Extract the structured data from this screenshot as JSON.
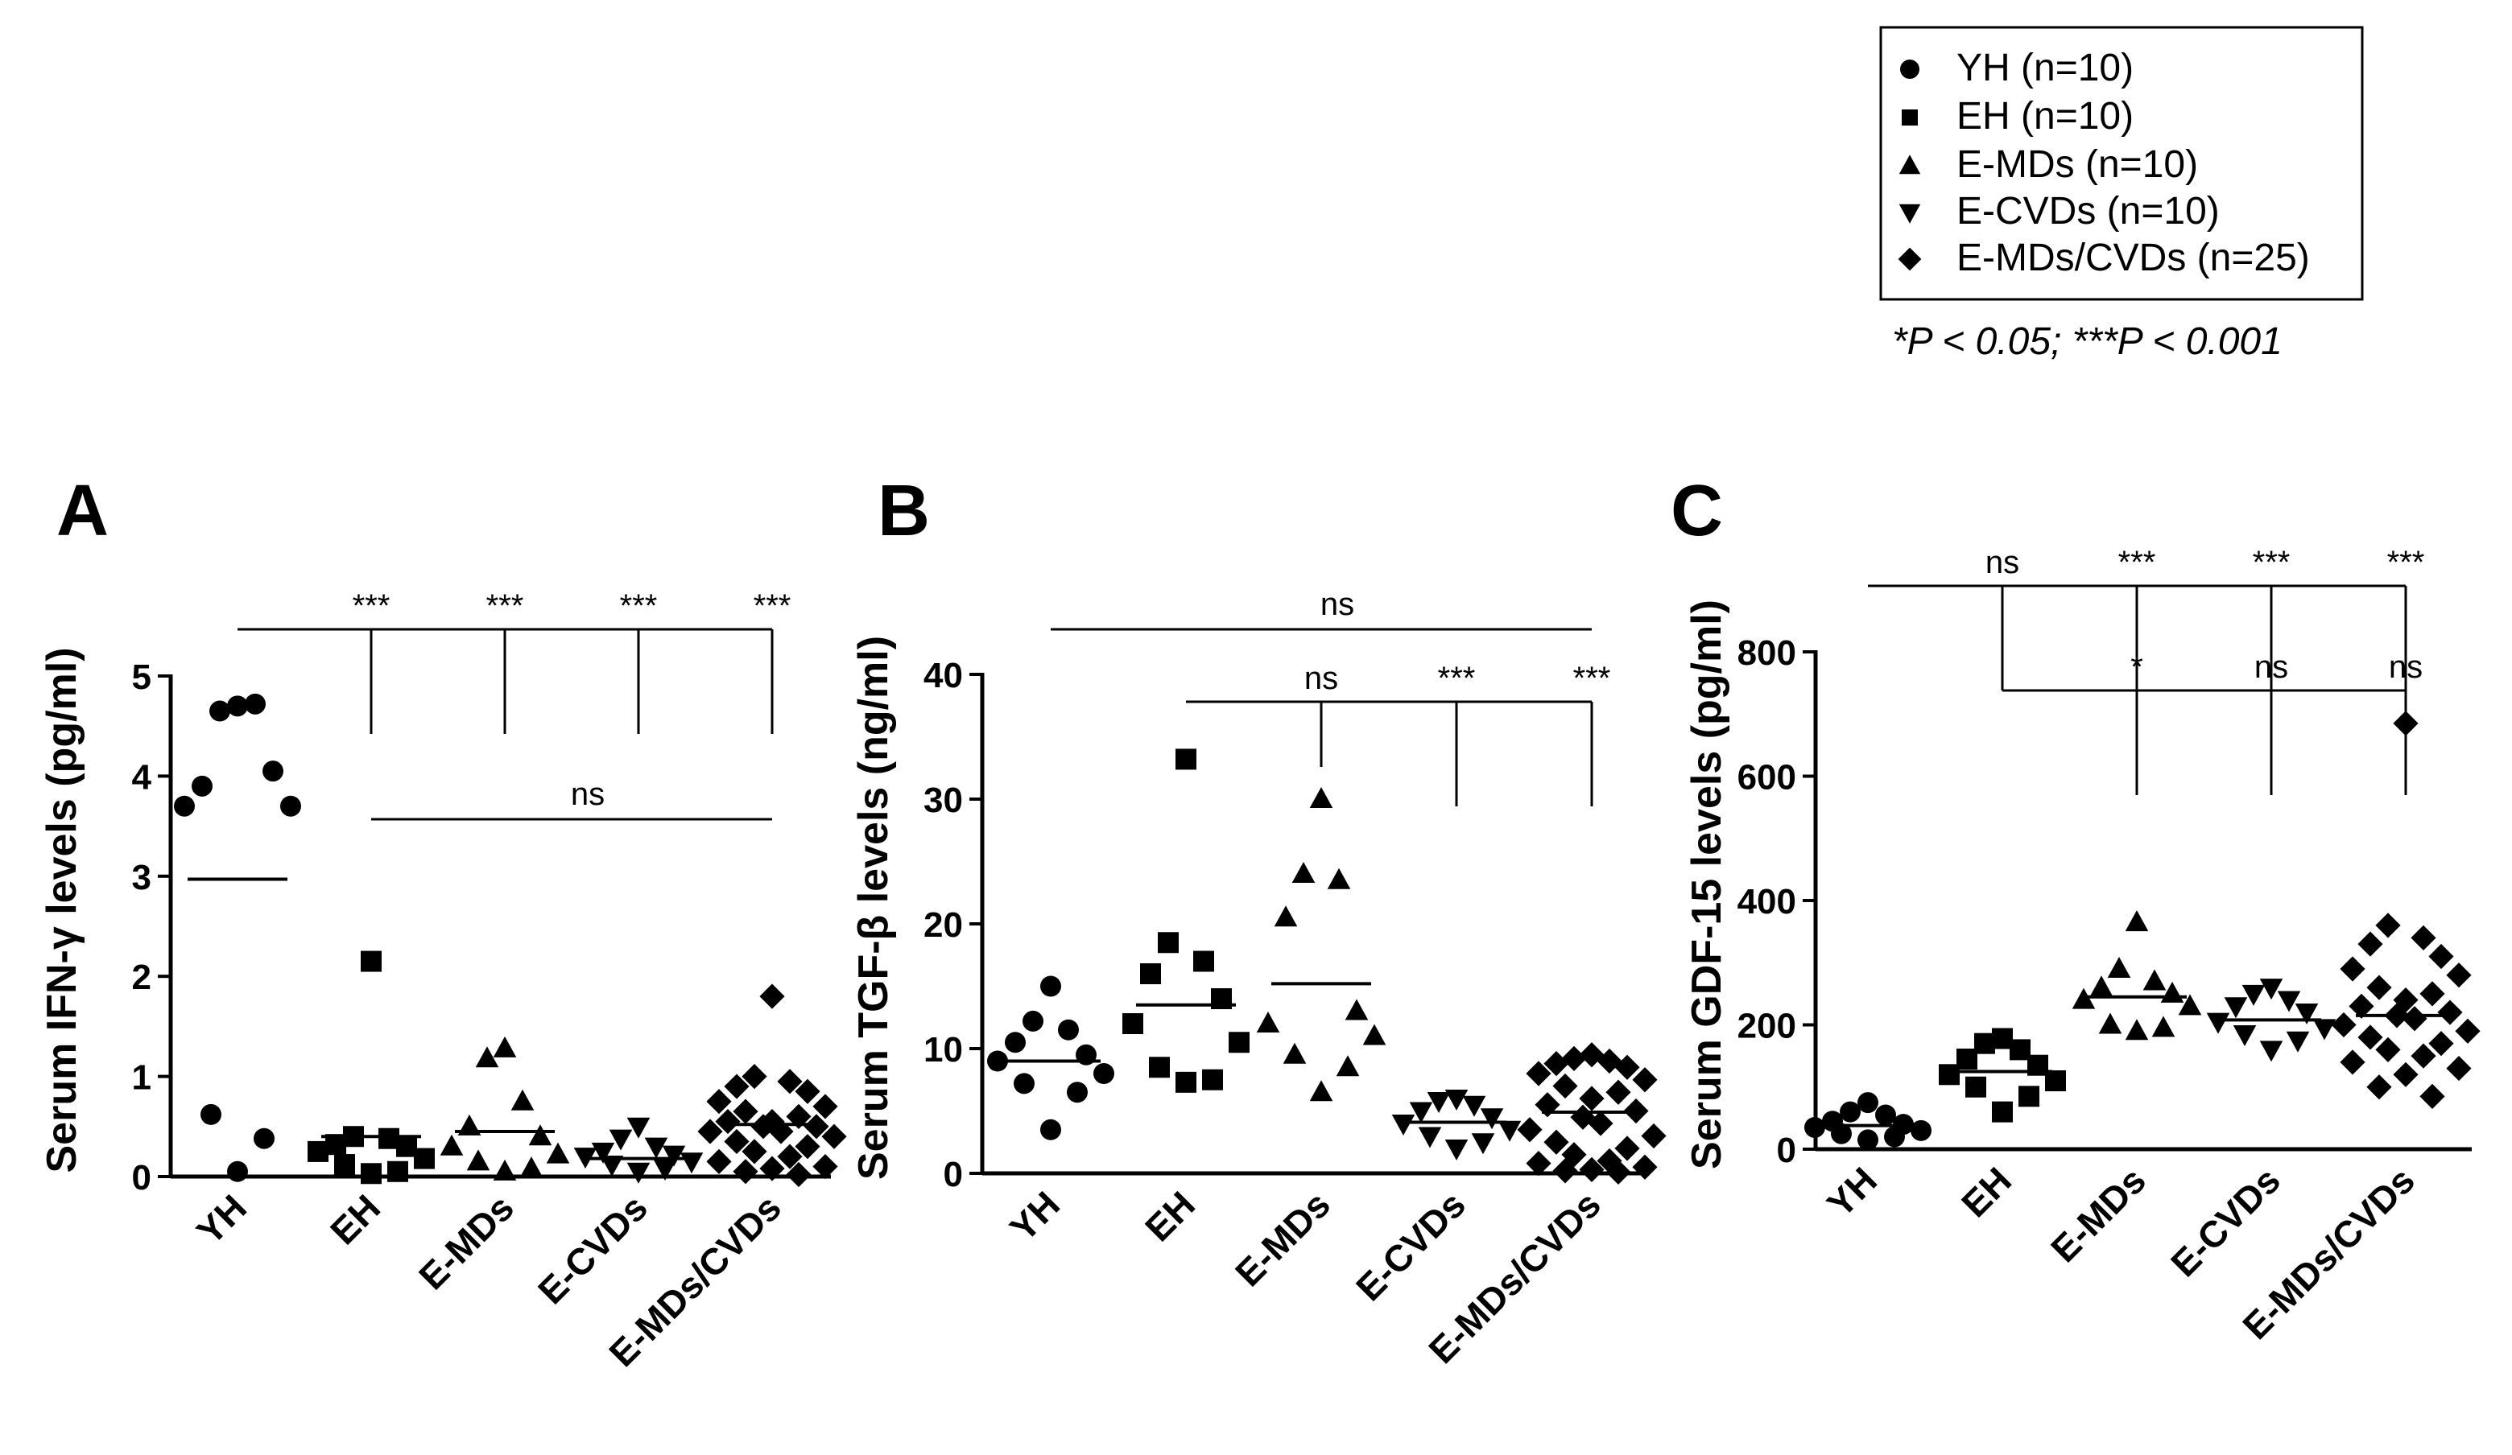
{
  "legend": {
    "entries": [
      {
        "marker": "circle",
        "label": "YH (n=10)"
      },
      {
        "marker": "square",
        "label": "EH (n=10)"
      },
      {
        "marker": "triangle-up",
        "label": "E-MDs (n=10)"
      },
      {
        "marker": "triangle-down",
        "label": "E-CVDs (n=10)"
      },
      {
        "marker": "diamond",
        "label": "E-MDs/CVDs (n=25)"
      }
    ],
    "significance_note": "*P < 0.05; ***P < 0.001"
  },
  "chart_data": [
    {
      "panel": "A",
      "type": "scatter",
      "ylabel": "Serum IFN-γ levels (pg/ml)",
      "ylim": [
        0,
        5
      ],
      "yticks": [
        0,
        1,
        2,
        3,
        4,
        5
      ],
      "categories": [
        "YH",
        "EH",
        "E-MDs",
        "E-CVDs",
        "E-MDs/CVDs"
      ],
      "series": [
        {
          "name": "YH",
          "marker": "circle",
          "values": [
            4.7,
            4.65,
            4.72,
            3.9,
            4.05,
            3.7,
            3.7,
            0.62,
            0.38,
            0.05
          ],
          "mean": 2.97
        },
        {
          "name": "EH",
          "marker": "square",
          "values": [
            2.15,
            0.4,
            0.38,
            0.32,
            0.3,
            0.25,
            0.18,
            0.12,
            0.05,
            0.03
          ],
          "mean": 0.4
        },
        {
          "name": "E-MDs",
          "marker": "triangle-up",
          "values": [
            1.28,
            1.18,
            0.75,
            0.5,
            0.4,
            0.3,
            0.22,
            0.15,
            0.08,
            0.05
          ],
          "mean": 0.45
        },
        {
          "name": "E-CVDs",
          "marker": "triangle-down",
          "values": [
            0.5,
            0.38,
            0.3,
            0.25,
            0.22,
            0.2,
            0.15,
            0.12,
            0.08,
            0.05
          ],
          "mean": 0.18
        },
        {
          "name": "E-MDs/CVDs",
          "marker": "diamond",
          "values": [
            1.8,
            1.0,
            0.95,
            0.9,
            0.85,
            0.75,
            0.7,
            0.65,
            0.6,
            0.55,
            0.55,
            0.5,
            0.5,
            0.45,
            0.45,
            0.4,
            0.35,
            0.3,
            0.25,
            0.2,
            0.15,
            0.1,
            0.08,
            0.05,
            0.02
          ],
          "mean": 0.52
        }
      ],
      "comparisons": [
        {
          "type": "bracket",
          "from": "YH",
          "to": [
            "EH",
            "E-MDs",
            "E-CVDs",
            "E-MDs/CVDs"
          ],
          "labels": [
            "***",
            "***",
            "***",
            "***"
          ],
          "level": 0
        },
        {
          "type": "line",
          "from": "EH",
          "to": "E-MDs/CVDs",
          "label": "ns",
          "level": 1
        }
      ]
    },
    {
      "panel": "B",
      "type": "scatter",
      "ylabel": "Serum TGF-β levels (ng/ml)",
      "ylim": [
        0,
        40
      ],
      "yticks": [
        0,
        10,
        20,
        30,
        40
      ],
      "categories": [
        "YH",
        "EH",
        "E-MDs",
        "E-CVDs",
        "E-MDs/CVDs"
      ],
      "series": [
        {
          "name": "YH",
          "marker": "circle",
          "values": [
            15.0,
            12.2,
            11.5,
            10.5,
            9.5,
            9.0,
            8.0,
            7.2,
            6.5,
            3.5
          ],
          "mean": 9.0
        },
        {
          "name": "EH",
          "marker": "square",
          "values": [
            33.2,
            18.5,
            17.0,
            16.0,
            14.0,
            12.0,
            10.5,
            8.5,
            7.5,
            7.3
          ],
          "mean": 13.5
        },
        {
          "name": "E-MDs",
          "marker": "triangle-up",
          "values": [
            30.0,
            24.0,
            23.5,
            20.5,
            13.0,
            12.0,
            11.0,
            9.5,
            8.5,
            6.5
          ],
          "mean": 15.2
        },
        {
          "name": "E-CVDs",
          "marker": "triangle-down",
          "values": [
            6.0,
            5.8,
            5.5,
            5.0,
            4.5,
            4.0,
            3.5,
            3.0,
            2.5,
            2.0
          ],
          "mean": 4.1
        },
        {
          "name": "E-MDs/CVDs",
          "marker": "diamond",
          "values": [
            9.5,
            9.2,
            9.0,
            8.8,
            8.5,
            8.0,
            7.5,
            7.0,
            6.5,
            6.0,
            5.5,
            5.0,
            4.5,
            4.0,
            3.5,
            3.0,
            2.5,
            2.0,
            1.5,
            1.0,
            0.8,
            0.5,
            0.3,
            0.2,
            0.1
          ],
          "mean": 4.9
        }
      ],
      "comparisons": [
        {
          "type": "line",
          "from": "YH",
          "to": "E-MDs/CVDs",
          "label": "ns",
          "level": 0
        },
        {
          "type": "bracket",
          "from": "EH",
          "to": [
            "E-MDs",
            "E-CVDs",
            "E-MDs/CVDs"
          ],
          "labels": [
            "ns",
            "***",
            "***"
          ],
          "level": 1
        }
      ]
    },
    {
      "panel": "C",
      "type": "scatter",
      "ylabel": "Serum GDF-15 levels (pg/ml)",
      "ylim": [
        0,
        800
      ],
      "yticks": [
        0,
        200,
        400,
        600,
        800
      ],
      "categories": [
        "YH",
        "EH",
        "E-MDs",
        "E-CVDs",
        "E-MDs/CVDs"
      ],
      "series": [
        {
          "name": "YH",
          "marker": "circle",
          "values": [
            75,
            60,
            55,
            45,
            40,
            35,
            30,
            25,
            20,
            15
          ],
          "mean": 38
        },
        {
          "name": "EH",
          "marker": "square",
          "values": [
            178,
            170,
            160,
            145,
            135,
            120,
            110,
            100,
            85,
            60
          ],
          "mean": 125
        },
        {
          "name": "E-MDs",
          "marker": "triangle-up",
          "values": [
            365,
            290,
            270,
            260,
            250,
            240,
            230,
            200,
            195,
            190
          ],
          "mean": 245
        },
        {
          "name": "E-CVDs",
          "marker": "triangle-down",
          "values": [
            260,
            250,
            240,
            230,
            220,
            205,
            195,
            185,
            175,
            160
          ],
          "mean": 208
        },
        {
          "name": "E-MDs/CVDs",
          "marker": "diamond",
          "values": [
            685,
            360,
            340,
            330,
            310,
            290,
            280,
            260,
            250,
            240,
            230,
            220,
            215,
            210,
            200,
            190,
            180,
            170,
            160,
            150,
            140,
            130,
            120,
            100,
            85
          ],
          "mean": 215
        }
      ],
      "comparisons": [
        {
          "type": "bracket",
          "from": "YH",
          "to": [
            "EH",
            "E-MDs",
            "E-CVDs",
            "E-MDs/CVDs"
          ],
          "labels": [
            "ns",
            "***",
            "***",
            "***"
          ],
          "level": 0
        },
        {
          "type": "bracket",
          "from": "EH",
          "to": [
            "E-MDs",
            "E-CVDs",
            "E-MDs/CVDs"
          ],
          "labels": [
            "*",
            "ns",
            "ns"
          ],
          "level": 1
        }
      ]
    }
  ]
}
